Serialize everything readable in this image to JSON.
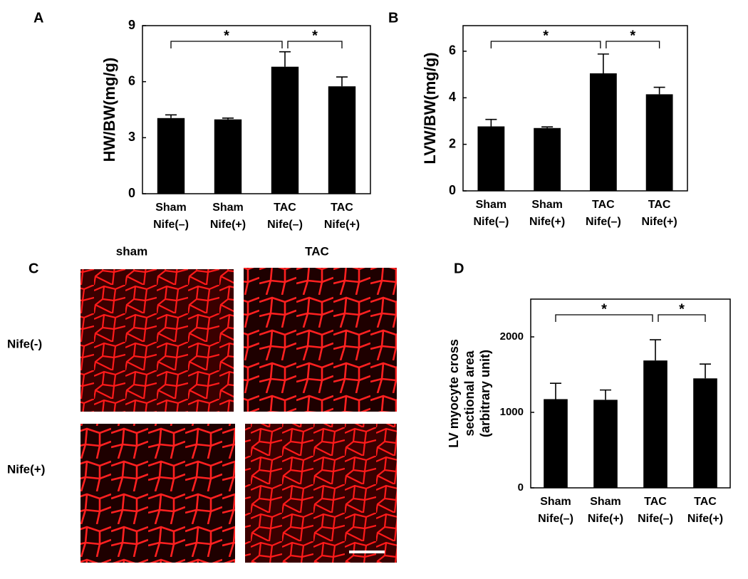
{
  "panels": {
    "A": "A",
    "B": "B",
    "C": "C",
    "D": "D"
  },
  "images": {
    "columns": [
      "sham",
      "TAC"
    ],
    "rows": [
      "Nife(-)",
      "Nife(+)"
    ]
  },
  "chart_data": [
    {
      "type": "bar",
      "ylabel": "HW/BW(mg/g)",
      "categories": [
        [
          "Sham",
          "Nife(–)"
        ],
        [
          "Sham",
          "Nife(+)"
        ],
        [
          "TAC",
          "Nife(–)"
        ],
        [
          "TAC",
          "Nife(+)"
        ]
      ],
      "values": [
        4.05,
        3.98,
        6.8,
        5.75
      ],
      "errors": [
        0.17,
        0.07,
        0.8,
        0.5
      ],
      "color": "#000000",
      "ylim": [
        0,
        9
      ],
      "yticks": [
        0,
        3,
        6,
        9
      ],
      "significance": {
        "text": "*",
        "pairs": [
          [
            0,
            2
          ],
          [
            2,
            3
          ]
        ]
      }
    },
    {
      "type": "bar",
      "ylabel": "LVW/BW(mg/g)",
      "categories": [
        [
          "Sham",
          "Nife(–)"
        ],
        [
          "Sham",
          "Nife(+)"
        ],
        [
          "TAC",
          "Nife(–)"
        ],
        [
          "TAC",
          "Nife(+)"
        ]
      ],
      "values": [
        2.77,
        2.7,
        5.05,
        4.15
      ],
      "errors": [
        0.3,
        0.05,
        0.83,
        0.3
      ],
      "color": "#000000",
      "ylim": [
        0,
        7.1
      ],
      "yticks": [
        0,
        2,
        4,
        6
      ],
      "significance": {
        "text": "*",
        "pairs": [
          [
            0,
            2
          ],
          [
            2,
            3
          ]
        ]
      }
    },
    {
      "type": "bar",
      "ylabel": [
        "LV myocyte cross",
        "sectional area",
        "(arbitrary unit)"
      ],
      "categories": [
        [
          "Sham",
          "Nife(–)"
        ],
        [
          "Sham",
          "Nife(+)"
        ],
        [
          "TAC",
          "Nife(–)"
        ],
        [
          "TAC",
          "Nife(+)"
        ]
      ],
      "values": [
        1175,
        1166,
        1687,
        1450
      ],
      "errors": [
        210,
        130,
        275,
        190
      ],
      "color": "#000000",
      "ylim": [
        0,
        2500
      ],
      "yticks": [
        0,
        1000,
        2000
      ],
      "significance": {
        "text": "*",
        "pairs": [
          [
            0,
            2
          ],
          [
            2,
            3
          ]
        ]
      }
    }
  ]
}
